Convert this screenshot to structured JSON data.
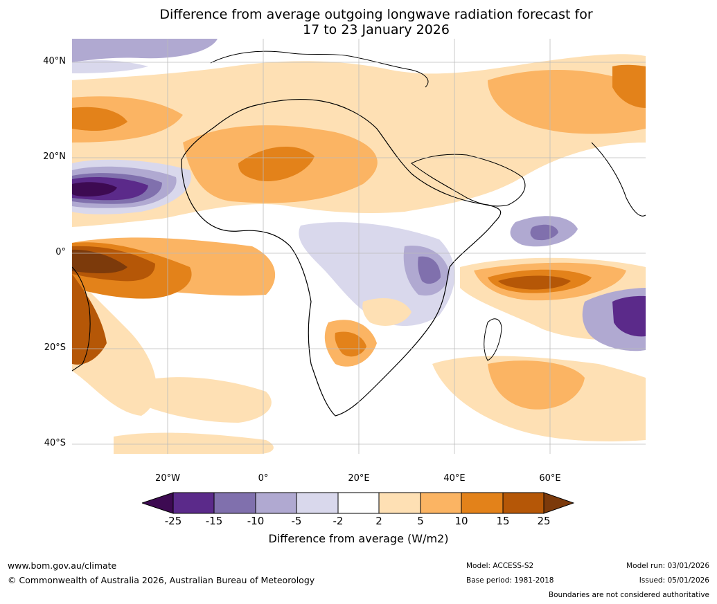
{
  "title_line1": "Difference from average outgoing longwave radiation forecast for",
  "title_line2": "17 to 23 January 2026",
  "lat_labels": [
    "40°N",
    "20°N",
    "0°",
    "20°S",
    "40°S"
  ],
  "lon_labels": [
    "20°W",
    "0°",
    "20°E",
    "40°E",
    "60°E"
  ],
  "colorbar": {
    "ticks": [
      "-25",
      "-15",
      "-10",
      "-5",
      "-2",
      "2",
      "5",
      "10",
      "15",
      "25"
    ],
    "colors": [
      "#3d0a52",
      "#5b2a8a",
      "#8070ad",
      "#b0a9d1",
      "#d9d8ec",
      "#ffffff",
      "#fee0b4",
      "#fbb463",
      "#e3821a",
      "#b55707",
      "#7c3a0b"
    ],
    "title": "Difference from average (W/m2)"
  },
  "footer": {
    "website": "www.bom.gov.au/climate",
    "copyright": "© Commonwealth of Australia 2026, Australian Bureau of Meteorology",
    "model": "Model: ACCESS-S2",
    "base_period": "Base period: 1981-2018",
    "model_run": "Model run: 03/01/2026",
    "issued": "Issued: 05/01/2026",
    "disclaimer": "Boundaries are not considered authoritative"
  }
}
